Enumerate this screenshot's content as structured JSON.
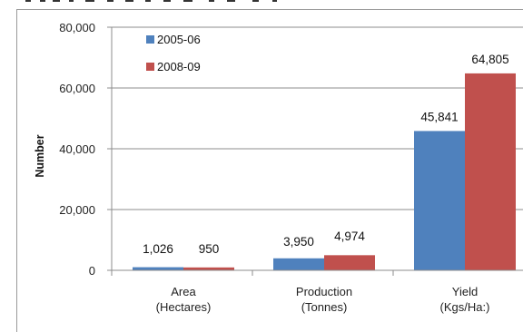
{
  "chart_data": {
    "type": "bar",
    "title": "",
    "xlabel": "",
    "ylabel": "Number",
    "ylim": [
      0,
      80000
    ],
    "yticks": [
      "0",
      "20,000",
      "40,000",
      "60,000",
      "80,000"
    ],
    "categories": [
      [
        "Area",
        "(Hectares)"
      ],
      [
        "Production",
        "(Tonnes)"
      ],
      [
        "Yield",
        "(Kgs/Ha:)"
      ]
    ],
    "series": [
      {
        "name": "2005-06",
        "color": "#4f81bd",
        "values": [
          1026,
          3950,
          45841
        ],
        "labels": [
          "1,026",
          "3,950",
          "45,841"
        ]
      },
      {
        "name": "2008-09",
        "color": "#c0504d",
        "values": [
          950,
          4974,
          64805
        ],
        "labels": [
          "950",
          "4,974",
          "64,805"
        ]
      }
    ],
    "legend": "top-left",
    "grid": "horizontal"
  }
}
